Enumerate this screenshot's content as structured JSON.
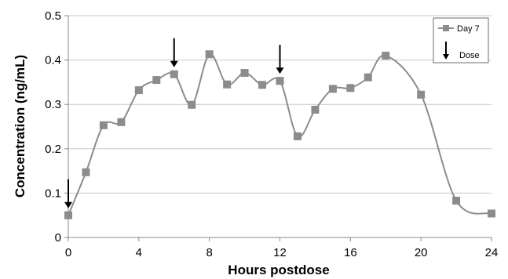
{
  "chart_data": {
    "type": "line",
    "title": "",
    "xlabel": "Hours postdose",
    "ylabel": "Concentration (ng/mL)",
    "xlim": [
      0,
      24
    ],
    "ylim": [
      0,
      0.5
    ],
    "xticks": [
      "0",
      "4",
      "8",
      "12",
      "16",
      "20",
      "24"
    ],
    "yticks": [
      "0",
      "0.1",
      "0.2",
      "0.3",
      "0.4",
      "0.5"
    ],
    "grid": "horizontal",
    "legend_position": "top-right",
    "series": [
      {
        "name": "Day 7",
        "color": "#8c8c8c",
        "marker": "square",
        "x": [
          0,
          1,
          2,
          3,
          4,
          5,
          6,
          7,
          8,
          9,
          10,
          11,
          12,
          13,
          14,
          15,
          16,
          17,
          18,
          20,
          22,
          24
        ],
        "y": [
          0.05,
          0.147,
          0.253,
          0.26,
          0.332,
          0.355,
          0.368,
          0.299,
          0.413,
          0.345,
          0.371,
          0.344,
          0.353,
          0.228,
          0.288,
          0.335,
          0.337,
          0.361,
          0.41,
          0.322,
          0.083,
          0.054
        ]
      }
    ],
    "annotations": [
      {
        "name": "Dose",
        "type": "arrow",
        "x": [
          0,
          6,
          12
        ]
      }
    ]
  }
}
